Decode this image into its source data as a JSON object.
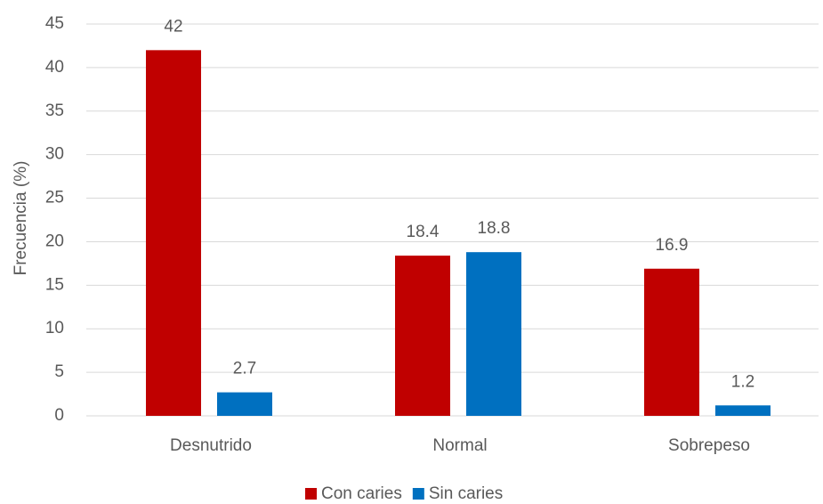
{
  "chart_data": {
    "type": "bar",
    "y_label": "Frecuencia (%)",
    "categories": [
      "Desnutrido",
      "Normal",
      "Sobrepeso"
    ],
    "series": [
      {
        "name": "Con caries",
        "color": "#c00000",
        "values": [
          42,
          18.4,
          16.9
        ]
      },
      {
        "name": "Sin caries",
        "color": "#0070c0",
        "values": [
          2.7,
          18.8,
          1.2
        ]
      }
    ],
    "ylim": [
      0,
      45
    ],
    "yticks": [
      0,
      5,
      10,
      15,
      20,
      25,
      30,
      35,
      40,
      45
    ],
    "grid": true,
    "legend": "bottom"
  }
}
